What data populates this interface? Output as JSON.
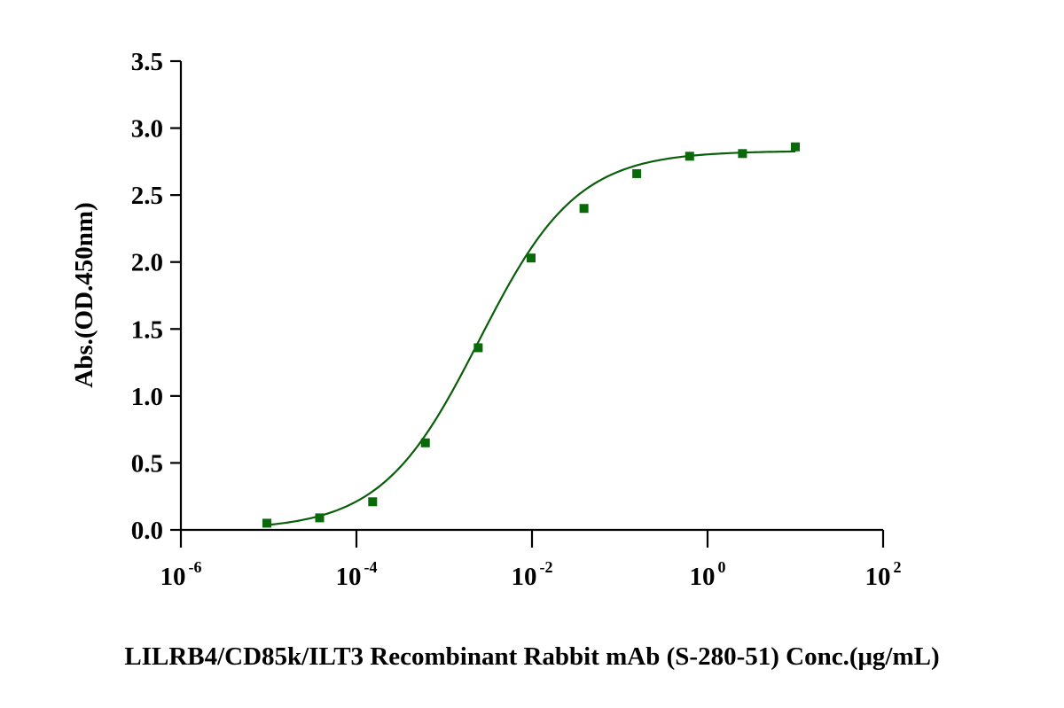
{
  "chart_data": {
    "type": "scatter",
    "xscale": "log",
    "xlabel": "LILRB4/CD85k/ILT3 Recombinant Rabbit mAb (S-280-51) Conc.(μg/mL)",
    "ylabel": "Abs.(OD.450nm)",
    "xlim": [
      1e-06,
      100
    ],
    "ylim": [
      0,
      3.5
    ],
    "xticks": [
      {
        "value": 1e-06,
        "base": "10",
        "exp": "-6"
      },
      {
        "value": 0.0001,
        "base": "10",
        "exp": "-4"
      },
      {
        "value": 0.01,
        "base": "10",
        "exp": "-2"
      },
      {
        "value": 1,
        "base": "10",
        "exp": "0"
      },
      {
        "value": 100,
        "base": "10",
        "exp": "2"
      }
    ],
    "yticks": [
      "0.0",
      "0.5",
      "1.0",
      "1.5",
      "2.0",
      "2.5",
      "3.0",
      "3.5"
    ],
    "series": [
      {
        "marker": "square",
        "color": "#0a6a0a",
        "x": [
          9.54e-06,
          3.81e-05,
          0.000153,
          0.00061,
          0.00244,
          0.00977,
          0.0391,
          0.156,
          0.625,
          2.5,
          10
        ],
        "y": [
          0.05,
          0.09,
          0.21,
          0.65,
          1.36,
          2.03,
          2.4,
          2.66,
          2.79,
          2.81,
          2.86
        ]
      }
    ],
    "fit": {
      "type": "4PL",
      "bottom": 0.0,
      "top": 2.83,
      "ec50": 0.0025,
      "hill": 0.78,
      "color": "#0a5e0a"
    },
    "grid": false,
    "legend": "none"
  }
}
